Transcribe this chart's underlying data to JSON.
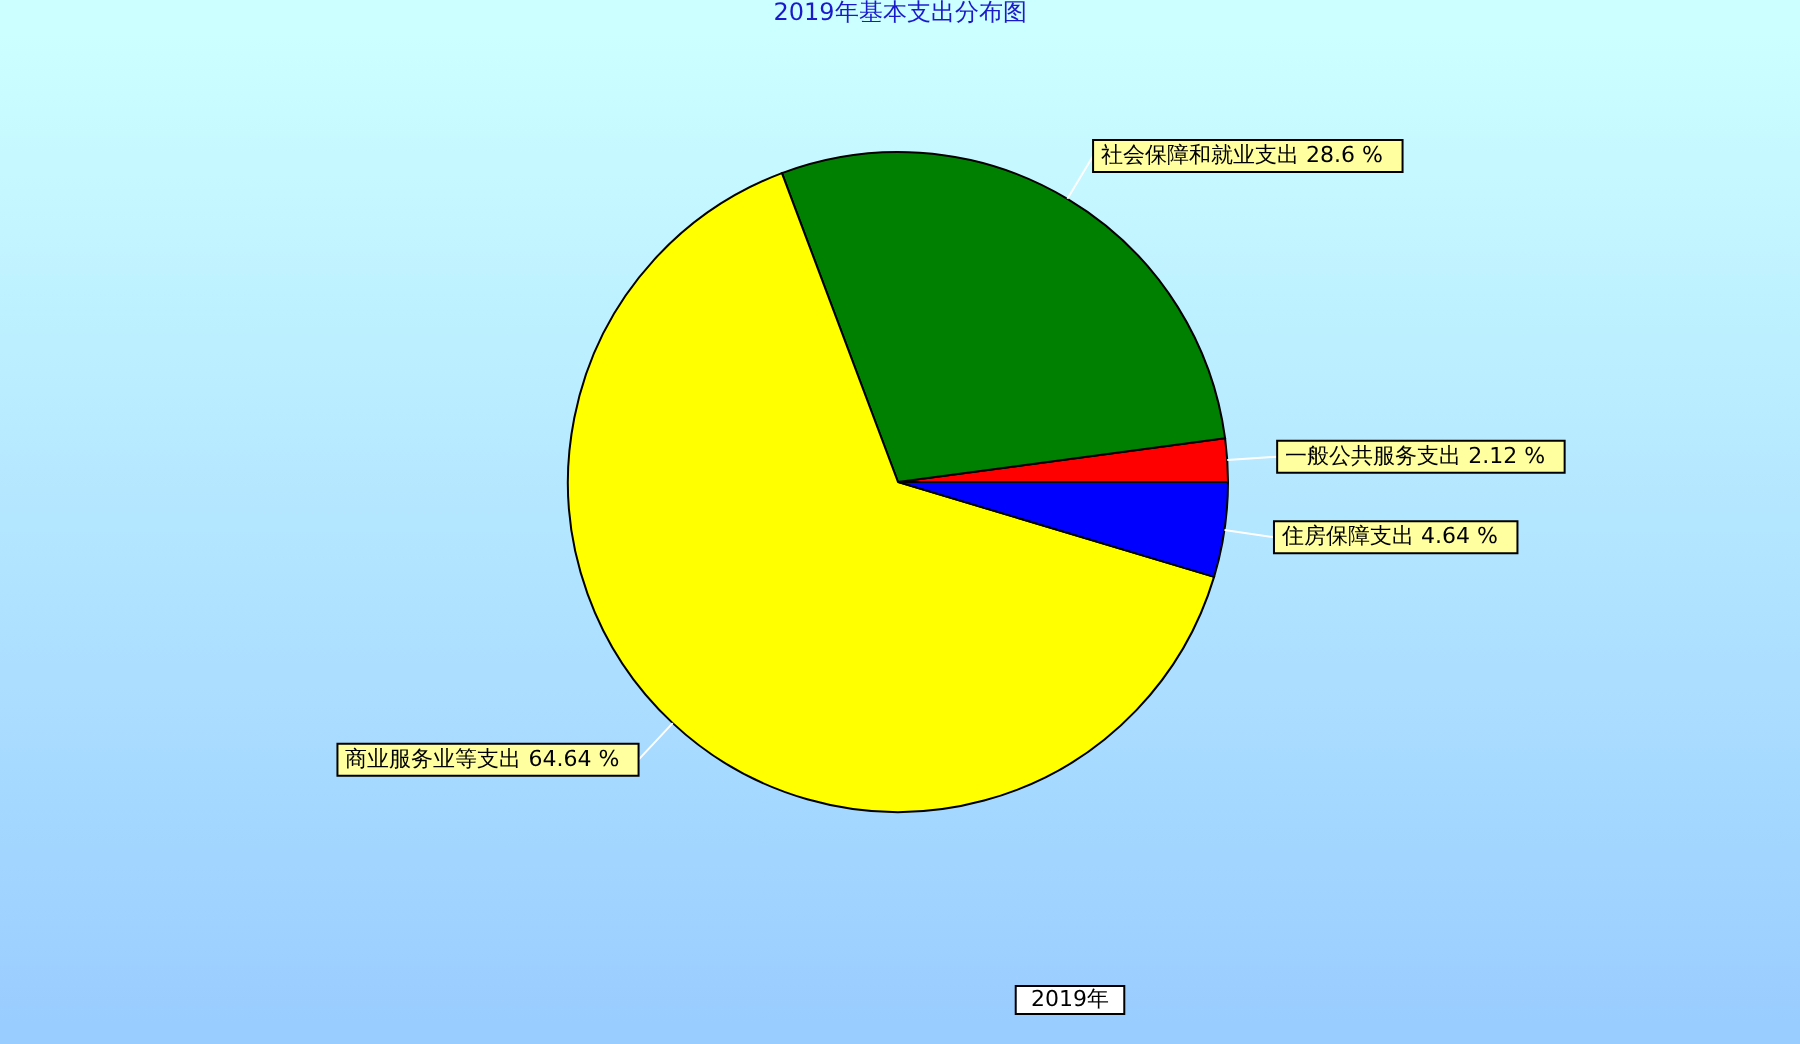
{
  "chart_data": {
    "type": "pie",
    "title": "2019年基本支出分布图",
    "categories": [
      "一般公共服务支出",
      "社会保障和就业支出",
      "商业服务业等支出",
      "住房保障支出"
    ],
    "values": [
      2.12,
      28.6,
      64.64,
      4.64
    ],
    "colors": [
      "#ff0000",
      "#008000",
      "#ffff00",
      "#0000ff"
    ],
    "value_labels": [
      "2.12 %",
      "28.6 %",
      "64.64 %",
      "4.64 %"
    ],
    "annotations": [
      "2019年"
    ]
  }
}
